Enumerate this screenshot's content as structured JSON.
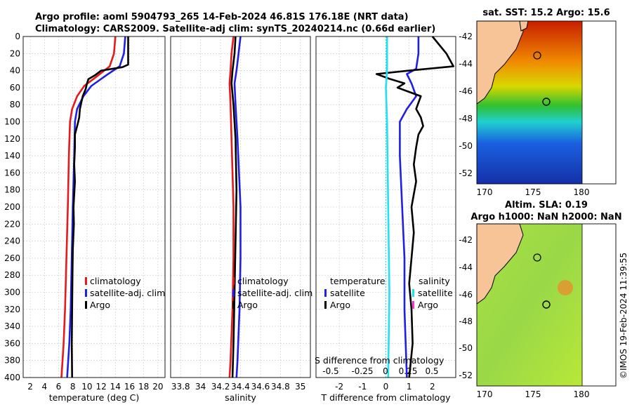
{
  "header": {
    "line1": "Argo profile: aoml 5904793_265 14-Feb-2024 46.81S 176.18E (NRT data)",
    "line2": "Climatology: CARS2009. Satellite-adj clim: synTS_20240214.nc (0.66d earlier)"
  },
  "watermark": "©IMOS 19-Feb-2024 11:39:55",
  "colors": {
    "clim": "#e41a1c",
    "sat": "#1f1fe6",
    "argo": "#000000",
    "sal_sat": "#22e0ee",
    "sal_argo": "#ff33cc",
    "land": "#f7c498"
  },
  "chart_data": [
    {
      "type": "line",
      "id": "temperature",
      "xlabel": "temperature (deg C)",
      "ylabel": "",
      "xlim": [
        1,
        21
      ],
      "ylim": [
        400,
        0
      ],
      "xticks": [
        2,
        4,
        6,
        8,
        10,
        12,
        14,
        16,
        18,
        20
      ],
      "yticks": [
        0,
        20,
        40,
        60,
        80,
        100,
        120,
        140,
        160,
        180,
        200,
        220,
        240,
        260,
        280,
        300,
        320,
        340,
        360,
        380,
        400
      ],
      "legend": [
        "climatology",
        "satellite-adj. clim",
        "Argo"
      ],
      "series": [
        {
          "name": "climatology",
          "color": "#e41a1c",
          "points": [
            [
              14.0,
              0
            ],
            [
              13.8,
              20
            ],
            [
              13.2,
              35
            ],
            [
              11.2,
              48
            ],
            [
              9.6,
              58
            ],
            [
              8.6,
              70
            ],
            [
              7.9,
              85
            ],
            [
              7.6,
              100
            ],
            [
              7.45,
              140
            ],
            [
              7.3,
              200
            ],
            [
              7.1,
              260
            ],
            [
              6.9,
              320
            ],
            [
              6.7,
              360
            ],
            [
              6.4,
              400
            ]
          ]
        },
        {
          "name": "satellite-adj. clim",
          "color": "#1f1fe6",
          "points": [
            [
              15.4,
              0
            ],
            [
              15.2,
              20
            ],
            [
              14.6,
              35
            ],
            [
              12.8,
              45
            ],
            [
              10.6,
              58
            ],
            [
              9.5,
              70
            ],
            [
              8.6,
              85
            ],
            [
              8.3,
              100
            ],
            [
              8.2,
              140
            ],
            [
              8.0,
              200
            ],
            [
              7.85,
              260
            ],
            [
              7.7,
              320
            ],
            [
              7.5,
              360
            ],
            [
              7.2,
              400
            ]
          ]
        },
        {
          "name": "Argo",
          "color": "#000000",
          "points": [
            [
              15.8,
              0
            ],
            [
              15.8,
              20
            ],
            [
              15.8,
              33
            ],
            [
              15.0,
              36
            ],
            [
              12.0,
              40
            ],
            [
              11.2,
              45
            ],
            [
              10.2,
              50
            ],
            [
              10.0,
              55
            ],
            [
              9.8,
              62
            ],
            [
              9.4,
              70
            ],
            [
              9.0,
              85
            ],
            [
              8.9,
              95
            ],
            [
              8.7,
              102
            ],
            [
              8.3,
              115
            ],
            [
              8.3,
              130
            ],
            [
              8.2,
              150
            ],
            [
              8.3,
              170
            ],
            [
              8.1,
              200
            ],
            [
              8.15,
              220
            ],
            [
              8.0,
              250
            ],
            [
              7.95,
              280
            ],
            [
              7.9,
              320
            ],
            [
              7.85,
              360
            ],
            [
              7.9,
              400
            ]
          ]
        }
      ]
    },
    {
      "type": "line",
      "id": "salinity",
      "xlabel": "salinity",
      "xlim": [
        33.7,
        35.1
      ],
      "ylim": [
        400,
        0
      ],
      "xticks": [
        33.8,
        34,
        34.2,
        34.4,
        34.6,
        34.8,
        35
      ],
      "tick_labels": [
        "33.8",
        "34",
        "34.2",
        "34.4",
        "34.6",
        "34.8",
        "35"
      ],
      "legend": [
        "climatology",
        "satellite-adj. clim",
        "Argo"
      ],
      "series": [
        {
          "name": "climatology",
          "color": "#e41a1c",
          "points": [
            [
              34.33,
              0
            ],
            [
              34.31,
              20
            ],
            [
              34.3,
              40
            ],
            [
              34.29,
              55
            ],
            [
              34.3,
              80
            ],
            [
              34.31,
              120
            ],
            [
              34.33,
              200
            ],
            [
              34.33,
              260
            ],
            [
              34.32,
              320
            ],
            [
              34.3,
              380
            ],
            [
              34.29,
              400
            ]
          ]
        },
        {
          "name": "satellite-adj. clim",
          "color": "#1f1fe6",
          "points": [
            [
              34.4,
              0
            ],
            [
              34.38,
              20
            ],
            [
              34.36,
              40
            ],
            [
              34.34,
              55
            ],
            [
              34.35,
              80
            ],
            [
              34.37,
              120
            ],
            [
              34.4,
              200
            ],
            [
              34.4,
              260
            ],
            [
              34.39,
              320
            ],
            [
              34.37,
              380
            ],
            [
              34.36,
              400
            ]
          ]
        },
        {
          "name": "Argo",
          "color": "#000000",
          "points": [
            [
              34.35,
              0
            ],
            [
              34.34,
              20
            ],
            [
              34.32,
              40
            ],
            [
              34.31,
              55
            ],
            [
              34.33,
              80
            ],
            [
              34.35,
              120
            ],
            [
              34.36,
              180
            ],
            [
              34.35,
              240
            ],
            [
              34.34,
              300
            ],
            [
              34.33,
              360
            ],
            [
              34.32,
              400
            ]
          ]
        }
      ]
    },
    {
      "type": "line",
      "id": "difference",
      "xlabel": "T difference from climatology",
      "x2label": "S difference from climatology",
      "xlim": [
        -3,
        3
      ],
      "ylim": [
        400,
        0
      ],
      "xticks": [
        -2,
        -1,
        0,
        1,
        2
      ],
      "x2ticks": [
        "-0.5",
        "-0.25",
        "0",
        "0.25",
        "0.5"
      ],
      "legend_left_title": "temperature",
      "legend_left": [
        "satellite",
        "Argo"
      ],
      "legend_right_title": "salinity",
      "legend_right": [
        "satellite",
        "Argo"
      ],
      "series": [
        {
          "name": "temperature satellite",
          "color": "#1f1fe6",
          "points": [
            [
              1.4,
              0
            ],
            [
              1.4,
              20
            ],
            [
              1.3,
              38
            ],
            [
              0.9,
              44
            ],
            [
              1.1,
              55
            ],
            [
              1.3,
              70
            ],
            [
              0.9,
              85
            ],
            [
              0.6,
              100
            ],
            [
              0.6,
              140
            ],
            [
              0.7,
              200
            ],
            [
              0.8,
              260
            ],
            [
              0.8,
              320
            ],
            [
              0.85,
              360
            ],
            [
              0.9,
              400
            ]
          ]
        },
        {
          "name": "temperature Argo",
          "color": "#000000",
          "points": [
            [
              2.0,
              0
            ],
            [
              2.6,
              20
            ],
            [
              2.9,
              35
            ],
            [
              1.0,
              40
            ],
            [
              -0.4,
              44
            ],
            [
              0.2,
              50
            ],
            [
              0.8,
              55
            ],
            [
              0.5,
              60
            ],
            [
              1.5,
              70
            ],
            [
              1.3,
              85
            ],
            [
              1.5,
              95
            ],
            [
              1.6,
              105
            ],
            [
              1.4,
              115
            ],
            [
              1.3,
              130
            ],
            [
              1.2,
              150
            ],
            [
              1.3,
              170
            ],
            [
              1.1,
              200
            ],
            [
              1.2,
              230
            ],
            [
              1.1,
              260
            ],
            [
              1.0,
              290
            ],
            [
              1.1,
              320
            ],
            [
              1.15,
              360
            ],
            [
              1.0,
              400
            ]
          ]
        },
        {
          "name": "salinity satellite",
          "color": "#22e0ee",
          "points": [
            [
              0.05,
              0
            ],
            [
              0.05,
              40
            ],
            [
              0.0,
              60
            ],
            [
              0.05,
              100
            ],
            [
              0.1,
              200
            ],
            [
              0.15,
              300
            ],
            [
              0.1,
              400
            ]
          ]
        }
      ]
    },
    {
      "type": "heatmap",
      "id": "sst_map",
      "title": "sat. SST: 15.2 Argo: 15.6",
      "xticks": [
        "170",
        "175",
        "180"
      ],
      "yticks": [
        "-42",
        "-44",
        "-46",
        "-48",
        "-50",
        "-52"
      ]
    },
    {
      "type": "heatmap",
      "id": "sla_map",
      "title_line1": "Altim. SLA: 0.19",
      "title_line2": "Argo h1000: NaN h2000: NaN",
      "xticks": [
        "170",
        "175",
        "180"
      ],
      "yticks": [
        "-42",
        "-44",
        "-46",
        "-48",
        "-50",
        "-52"
      ]
    }
  ]
}
